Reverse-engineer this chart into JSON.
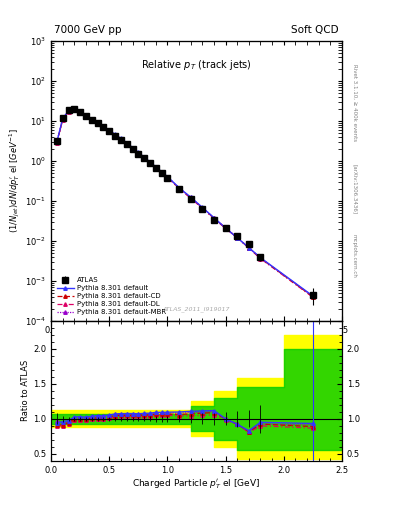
{
  "title_left": "7000 GeV pp",
  "title_right": "Soft QCD",
  "plot_title": "Relative $p_T$ (track jets)",
  "ylabel_main": "(1/Njet)dN/dp$_T^{\\prime}$ el [GeV$^{-1}$]",
  "ylabel_ratio": "Ratio to ATLAS",
  "xlabel": "Charged Particle $p_T^{\\prime}$ el [GeV]",
  "watermark": "ATLAS_2011_I919017",
  "right_label1": "Rivet 3.1.10, ≥ 400k events",
  "right_label2": "[arXiv:1306.3436]",
  "right_label3": "mcplots.cern.ch",
  "ylim_main": [
    0.0001,
    1000.0
  ],
  "ylim_ratio": [
    0.4,
    2.4
  ],
  "xlim": [
    0.0,
    2.5
  ],
  "atlas_x": [
    0.05,
    0.1,
    0.15,
    0.2,
    0.25,
    0.3,
    0.35,
    0.4,
    0.45,
    0.5,
    0.55,
    0.6,
    0.65,
    0.7,
    0.75,
    0.8,
    0.85,
    0.9,
    0.95,
    1.0,
    1.1,
    1.2,
    1.3,
    1.4,
    1.5,
    1.6,
    1.7,
    1.8,
    2.25
  ],
  "atlas_y": [
    3.2,
    12.0,
    18.5,
    19.5,
    17.0,
    13.5,
    10.8,
    8.8,
    7.0,
    5.5,
    4.3,
    3.4,
    2.65,
    2.0,
    1.52,
    1.15,
    0.87,
    0.65,
    0.49,
    0.37,
    0.195,
    0.112,
    0.062,
    0.034,
    0.021,
    0.013,
    0.0082,
    0.004,
    0.00045
  ],
  "atlas_yerr": [
    0.25,
    0.5,
    0.6,
    0.6,
    0.5,
    0.4,
    0.3,
    0.25,
    0.2,
    0.15,
    0.12,
    0.1,
    0.08,
    0.06,
    0.05,
    0.04,
    0.03,
    0.025,
    0.02,
    0.015,
    0.01,
    0.007,
    0.005,
    0.003,
    0.002,
    0.0015,
    0.001,
    0.0008,
    0.0002
  ],
  "py_default_x": [
    0.05,
    0.1,
    0.15,
    0.2,
    0.25,
    0.3,
    0.35,
    0.4,
    0.45,
    0.5,
    0.55,
    0.6,
    0.65,
    0.7,
    0.75,
    0.8,
    0.85,
    0.9,
    0.95,
    1.0,
    1.1,
    1.2,
    1.3,
    1.4,
    1.5,
    1.6,
    1.7,
    1.8,
    2.25
  ],
  "py_default_y": [
    3.0,
    11.5,
    18.0,
    20.0,
    17.5,
    13.8,
    11.2,
    9.2,
    7.3,
    5.8,
    4.6,
    3.65,
    2.85,
    2.15,
    1.63,
    1.24,
    0.94,
    0.71,
    0.535,
    0.405,
    0.214,
    0.124,
    0.069,
    0.038,
    0.021,
    0.012,
    0.0068,
    0.0038,
    0.00042
  ],
  "py_cd_x": [
    0.05,
    0.1,
    0.15,
    0.2,
    0.25,
    0.3,
    0.35,
    0.4,
    0.45,
    0.5,
    0.55,
    0.6,
    0.65,
    0.7,
    0.75,
    0.8,
    0.85,
    0.9,
    0.95,
    1.0,
    1.1,
    1.2,
    1.3,
    1.4,
    1.5,
    1.6,
    1.7,
    1.8,
    2.25
  ],
  "py_cd_y": [
    2.9,
    11.0,
    17.5,
    19.5,
    17.0,
    13.5,
    10.9,
    8.9,
    7.1,
    5.65,
    4.5,
    3.57,
    2.78,
    2.1,
    1.6,
    1.21,
    0.92,
    0.695,
    0.523,
    0.395,
    0.207,
    0.12,
    0.067,
    0.037,
    0.021,
    0.012,
    0.0067,
    0.0037,
    0.0004
  ],
  "py_dl_x": [
    0.05,
    0.1,
    0.15,
    0.2,
    0.25,
    0.3,
    0.35,
    0.4,
    0.45,
    0.5,
    0.55,
    0.6,
    0.65,
    0.7,
    0.75,
    0.8,
    0.85,
    0.9,
    0.95,
    1.0,
    1.1,
    1.2,
    1.3,
    1.4,
    1.5,
    1.6,
    1.7,
    1.8,
    2.25
  ],
  "py_dl_y": [
    2.85,
    10.8,
    17.2,
    19.2,
    16.8,
    13.3,
    10.7,
    8.8,
    7.0,
    5.55,
    4.42,
    3.51,
    2.73,
    2.07,
    1.57,
    1.19,
    0.905,
    0.684,
    0.515,
    0.388,
    0.203,
    0.117,
    0.065,
    0.036,
    0.0205,
    0.012,
    0.0066,
    0.0036,
    0.00039
  ],
  "py_mbr_x": [
    0.05,
    0.1,
    0.15,
    0.2,
    0.25,
    0.3,
    0.35,
    0.4,
    0.45,
    0.5,
    0.55,
    0.6,
    0.65,
    0.7,
    0.75,
    0.8,
    0.85,
    0.9,
    0.95,
    1.0,
    1.1,
    1.2,
    1.3,
    1.4,
    1.5,
    1.6,
    1.7,
    1.8,
    2.25
  ],
  "py_mbr_y": [
    3.1,
    11.3,
    17.8,
    19.8,
    17.3,
    13.7,
    11.1,
    9.1,
    7.25,
    5.75,
    4.57,
    3.62,
    2.82,
    2.13,
    1.62,
    1.23,
    0.932,
    0.705,
    0.53,
    0.401,
    0.211,
    0.122,
    0.068,
    0.0375,
    0.0208,
    0.012,
    0.0067,
    0.0037,
    0.00041
  ],
  "color_atlas": "#000000",
  "color_default": "#3333ff",
  "color_cd": "#cc0000",
  "color_dl": "#dd0066",
  "color_mbr": "#9900cc",
  "band_yellow_x": [
    0.0,
    0.5,
    1.0,
    1.2,
    1.4,
    1.6,
    2.0,
    2.5
  ],
  "band_yellow_lo": [
    0.88,
    0.88,
    0.88,
    0.75,
    0.6,
    0.42,
    0.42,
    0.42
  ],
  "band_yellow_hi": [
    1.12,
    1.12,
    1.12,
    1.25,
    1.4,
    1.58,
    2.2,
    2.2
  ],
  "band_green_x": [
    0.0,
    0.5,
    1.0,
    1.2,
    1.4,
    1.6,
    2.0,
    2.5
  ],
  "band_green_lo": [
    0.93,
    0.93,
    0.93,
    0.82,
    0.7,
    0.55,
    0.55,
    0.55
  ],
  "band_green_hi": [
    1.07,
    1.07,
    1.07,
    1.18,
    1.3,
    1.45,
    2.0,
    2.0
  ]
}
